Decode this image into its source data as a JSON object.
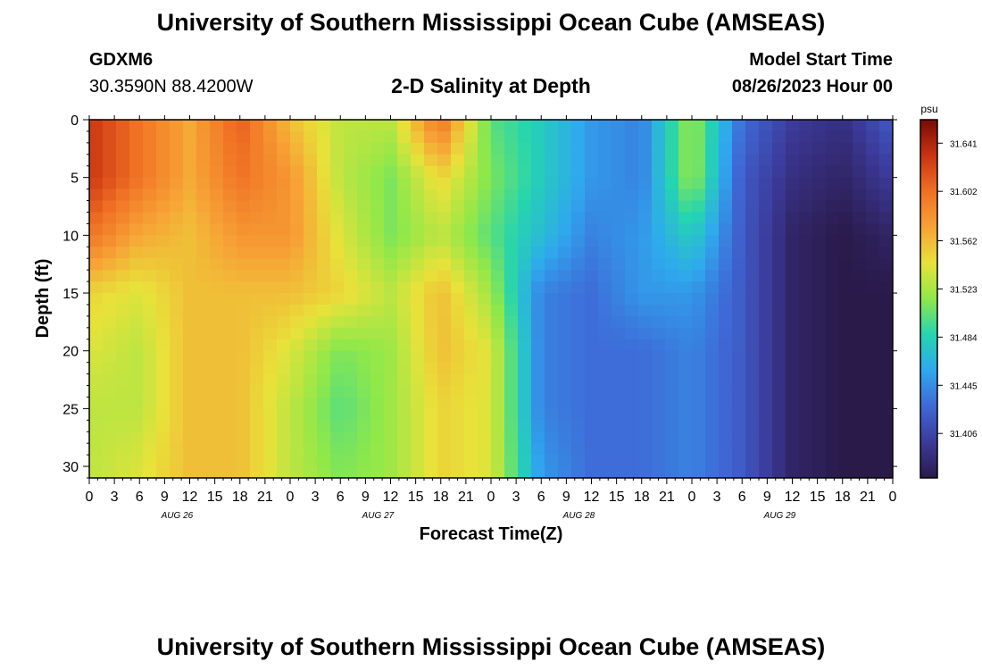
{
  "header": {
    "title": "University of Southern Mississippi Ocean Cube (AMSEAS)",
    "station_id": "GDXM6",
    "coordinates": "30.3590N  88.4200W",
    "subtitle": "2-D Salinity at Depth",
    "model_start_label": "Model Start Time",
    "model_start_value": "08/26/2023 Hour 00"
  },
  "footer": {
    "title": "University of Southern Mississippi Ocean Cube (AMSEAS)"
  },
  "chart_data": {
    "type": "heatmap",
    "title": "2-D Salinity at Depth",
    "xlabel": "Forecast Time(Z)",
    "ylabel": "Depth (ft)",
    "x_hours": [
      0,
      6,
      12,
      18,
      24,
      30,
      36,
      42,
      48,
      54,
      60,
      66,
      72,
      78,
      84,
      90,
      96
    ],
    "x_tick_labels": [
      "0",
      "3",
      "6",
      "9",
      "12",
      "15",
      "18",
      "21",
      "0",
      "3",
      "6",
      "9",
      "12",
      "15",
      "18",
      "21",
      "0",
      "3",
      "6",
      "9",
      "12",
      "15",
      "18",
      "21",
      "0",
      "3",
      "6",
      "9",
      "12",
      "15",
      "18",
      "21",
      "0"
    ],
    "day_labels": [
      "AUG 26",
      "AUG 27",
      "AUG 28",
      "AUG 29"
    ],
    "depth_ft": [
      0,
      5,
      10,
      15,
      20,
      25,
      30
    ],
    "y_tick_labels": [
      "0",
      "5",
      "10",
      "15",
      "20",
      "25",
      "30"
    ],
    "xlim": [
      0,
      96
    ],
    "ylim": [
      0,
      31
    ],
    "values_psu": [
      [
        31.63,
        31.6,
        31.57,
        31.61,
        31.56,
        31.53,
        31.53,
        31.6,
        31.5,
        31.48,
        31.45,
        31.44,
        31.52,
        31.43,
        31.4,
        31.39,
        31.42
      ],
      [
        31.63,
        31.6,
        31.57,
        31.6,
        31.58,
        31.53,
        31.51,
        31.55,
        31.51,
        31.48,
        31.45,
        31.44,
        31.52,
        31.42,
        31.39,
        31.38,
        31.4
      ],
      [
        31.6,
        31.57,
        31.56,
        31.58,
        31.58,
        31.54,
        31.51,
        31.53,
        31.5,
        31.47,
        31.44,
        31.45,
        31.48,
        31.42,
        31.38,
        31.37,
        31.38
      ],
      [
        31.55,
        31.54,
        31.56,
        31.56,
        31.56,
        31.55,
        31.53,
        31.56,
        31.52,
        31.44,
        31.43,
        31.45,
        31.45,
        31.42,
        31.38,
        31.37,
        31.37
      ],
      [
        31.54,
        31.53,
        31.56,
        31.56,
        31.54,
        31.51,
        31.52,
        31.56,
        31.54,
        31.44,
        31.43,
        31.43,
        31.44,
        31.42,
        31.38,
        31.37,
        31.37
      ],
      [
        31.53,
        31.53,
        31.56,
        31.56,
        31.53,
        31.5,
        31.52,
        31.55,
        31.54,
        31.44,
        31.43,
        31.43,
        31.44,
        31.42,
        31.38,
        31.37,
        31.37
      ],
      [
        31.53,
        31.54,
        31.56,
        31.56,
        31.53,
        31.51,
        31.52,
        31.55,
        31.54,
        31.45,
        31.43,
        31.43,
        31.44,
        31.42,
        31.38,
        31.37,
        31.37
      ]
    ],
    "colorbar": {
      "unit": "psu",
      "ticks": [
        31.641,
        31.602,
        31.562,
        31.523,
        31.484,
        31.445,
        31.406
      ],
      "tick_labels": [
        "31.641",
        "31.602",
        "31.562",
        "31.523",
        "31.484",
        "31.445",
        "31.406"
      ],
      "range": [
        31.37,
        31.66
      ],
      "colors": [
        "#2a1a4a",
        "#3c3a9a",
        "#3f68d6",
        "#2fa8ee",
        "#25d4b0",
        "#8fe84a",
        "#e8e23a",
        "#f7a236",
        "#f07024",
        "#c93412",
        "#7a0a04"
      ]
    }
  }
}
